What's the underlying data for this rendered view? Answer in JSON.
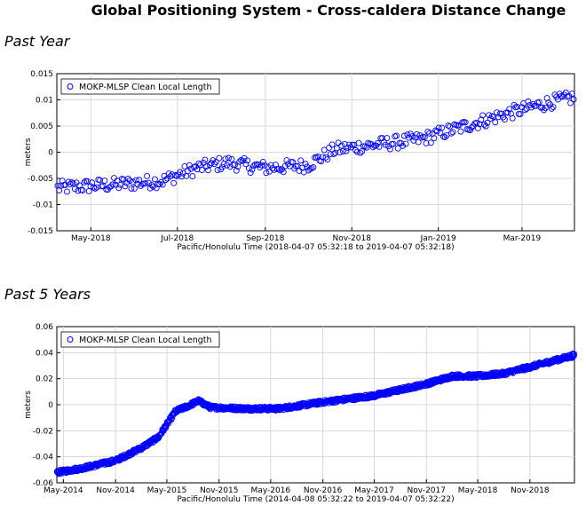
{
  "page": {
    "title": "Global Positioning System - Cross-caldera Distance Change",
    "sections": [
      {
        "label": "Past Year"
      },
      {
        "label": "Past 5 Years"
      }
    ]
  },
  "style": {
    "marker_color": "#0000ff",
    "grid_color": "#d9d9d9"
  },
  "chart_data": [
    {
      "type": "scatter",
      "title": "Past Year",
      "ylabel": "meters",
      "xlabel": "Pacific/Honolulu Time (2018-04-07 05:32:18 to 2019-04-07 05:32:18)",
      "legend": {
        "label": "MOKP-MLSP Clean Local Length",
        "position": "top-left"
      },
      "grid": true,
      "xlim": [
        "2018-04-07",
        "2019-04-07"
      ],
      "ylim": [
        -0.015,
        0.015
      ],
      "yticks": [
        -0.015,
        -0.01,
        -0.005,
        0,
        0.005,
        0.01,
        0.015
      ],
      "ytick_labels": [
        "-0.015",
        "-0.01",
        "-0.005",
        "0",
        "0.005",
        "0.01",
        "0.015"
      ],
      "xticks": [
        "2018-05-01",
        "2018-07-01",
        "2018-09-01",
        "2018-11-01",
        "2019-01-01",
        "2019-03-01"
      ],
      "xtick_labels": [
        "May-2018",
        "Jul-2018",
        "Sep-2018",
        "Nov-2018",
        "Jan-2019",
        "Mar-2019"
      ],
      "trend_points": [
        {
          "x": "2018-04-07",
          "y": -0.0068
        },
        {
          "x": "2018-05-15",
          "y": -0.0062
        },
        {
          "x": "2018-06-20",
          "y": -0.0055
        },
        {
          "x": "2018-07-15",
          "y": -0.003
        },
        {
          "x": "2018-08-05",
          "y": -0.002
        },
        {
          "x": "2018-09-01",
          "y": -0.003
        },
        {
          "x": "2018-10-01",
          "y": -0.0025
        },
        {
          "x": "2018-10-20",
          "y": 0.0005
        },
        {
          "x": "2018-11-20",
          "y": 0.0015
        },
        {
          "x": "2018-12-20",
          "y": 0.0025
        },
        {
          "x": "2019-01-20",
          "y": 0.005
        },
        {
          "x": "2019-02-20",
          "y": 0.0075
        },
        {
          "x": "2019-03-20",
          "y": 0.0095
        },
        {
          "x": "2019-04-07",
          "y": 0.0105
        }
      ],
      "scatter_spread": 0.0013,
      "n_points": 330
    },
    {
      "type": "scatter",
      "title": "Past 5 Years",
      "ylabel": "meters",
      "xlabel": "Pacific/Honolulu Time (2014-04-08 05:32:22 to 2019-04-07 05:32:22)",
      "legend": {
        "label": "MOKP-MLSP Clean Local Length",
        "position": "top-left"
      },
      "grid": true,
      "xlim": [
        "2014-04-08",
        "2019-04-07"
      ],
      "ylim": [
        -0.06,
        0.06
      ],
      "yticks": [
        -0.06,
        -0.04,
        -0.02,
        0,
        0.02,
        0.04,
        0.06
      ],
      "ytick_labels": [
        "-0.06",
        "-0.04",
        "-0.02",
        "0",
        "0.02",
        "0.04",
        "0.06"
      ],
      "xticks": [
        "2014-05-01",
        "2014-11-01",
        "2015-05-01",
        "2015-11-01",
        "2016-05-01",
        "2016-11-01",
        "2017-05-01",
        "2017-11-01",
        "2018-05-01",
        "2018-11-01"
      ],
      "xtick_labels": [
        "May-2014",
        "Nov-2014",
        "May-2015",
        "Nov-2015",
        "May-2016",
        "Nov-2016",
        "May-2017",
        "Nov-2017",
        "May-2018",
        "Nov-2018"
      ],
      "trend_points": [
        {
          "x": "2014-04-08",
          "y": -0.052
        },
        {
          "x": "2014-07-01",
          "y": -0.049
        },
        {
          "x": "2014-11-01",
          "y": -0.043
        },
        {
          "x": "2015-02-01",
          "y": -0.033
        },
        {
          "x": "2015-04-01",
          "y": -0.025
        },
        {
          "x": "2015-05-01",
          "y": -0.015
        },
        {
          "x": "2015-06-01",
          "y": -0.005
        },
        {
          "x": "2015-07-15",
          "y": -0.001
        },
        {
          "x": "2015-08-20",
          "y": 0.003
        },
        {
          "x": "2015-10-01",
          "y": -0.002
        },
        {
          "x": "2016-02-01",
          "y": -0.003
        },
        {
          "x": "2016-06-01",
          "y": -0.003
        },
        {
          "x": "2016-11-01",
          "y": 0.002
        },
        {
          "x": "2017-05-01",
          "y": 0.007
        },
        {
          "x": "2017-11-01",
          "y": 0.016
        },
        {
          "x": "2018-02-01",
          "y": 0.022
        },
        {
          "x": "2018-05-01",
          "y": 0.022
        },
        {
          "x": "2018-08-01",
          "y": 0.024
        },
        {
          "x": "2018-11-01",
          "y": 0.029
        },
        {
          "x": "2019-04-07",
          "y": 0.038
        }
      ],
      "scatter_spread": 0.0015,
      "n_points": 1200
    }
  ]
}
